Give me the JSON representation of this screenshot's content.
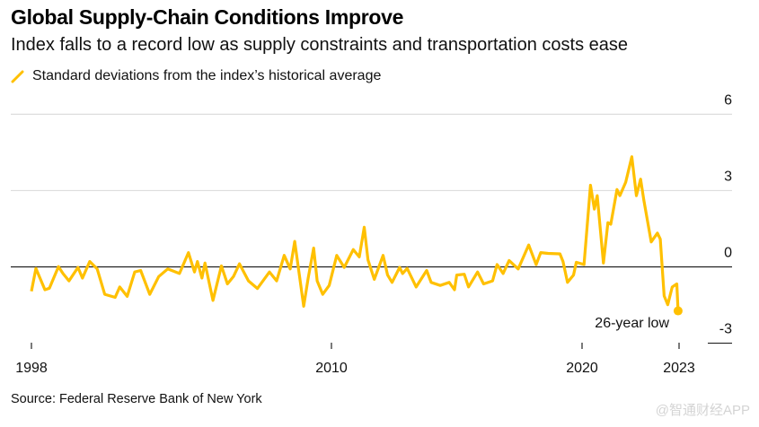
{
  "title": "Global Supply-Chain Conditions Improve",
  "subtitle": "Index falls to a record low as supply constraints and transportation costs ease",
  "legend_label": "Standard deviations from the index’s historical average",
  "source": "Source: Federal Reserve Bank of New York",
  "watermark": "@智通财经APP",
  "chart_data": {
    "type": "line",
    "title": "Global Supply-Chain Conditions Improve",
    "ylim": [
      -3,
      6
    ],
    "yticks": [
      "6",
      "3",
      "0",
      "-3"
    ],
    "ytick_values": [
      6,
      3,
      0,
      -3
    ],
    "xticks": [
      "1998",
      "2010",
      "2020",
      "2023"
    ],
    "xtick_values": [
      1998,
      2010,
      2020,
      2023
    ],
    "grid": true,
    "line_color": "#FFC000",
    "annotation": "26-year low",
    "series": [
      {
        "name": "Standard deviations from the index’s historical average",
        "points": [
          [
            1998.0,
            -0.96
          ],
          [
            1998.18,
            -0.06
          ],
          [
            1998.54,
            -0.9
          ],
          [
            1998.72,
            -0.84
          ],
          [
            1999.08,
            0.01
          ],
          [
            1999.26,
            -0.26
          ],
          [
            1999.5,
            -0.55
          ],
          [
            1999.86,
            -0.02
          ],
          [
            2000.04,
            -0.44
          ],
          [
            2000.33,
            0.21
          ],
          [
            2000.63,
            -0.08
          ],
          [
            2000.93,
            -1.08
          ],
          [
            2001.35,
            -1.2
          ],
          [
            2001.53,
            -0.79
          ],
          [
            2001.83,
            -1.16
          ],
          [
            2002.13,
            -0.2
          ],
          [
            2002.37,
            -0.14
          ],
          [
            2002.73,
            -1.08
          ],
          [
            2003.09,
            -0.38
          ],
          [
            2003.45,
            -0.08
          ],
          [
            2003.92,
            -0.26
          ],
          [
            2004.28,
            0.56
          ],
          [
            2004.52,
            -0.2
          ],
          [
            2004.64,
            0.21
          ],
          [
            2004.82,
            -0.44
          ],
          [
            2004.94,
            0.15
          ],
          [
            2005.26,
            -1.32
          ],
          [
            2005.6,
            0.04
          ],
          [
            2005.84,
            -0.67
          ],
          [
            2006.08,
            -0.38
          ],
          [
            2006.32,
            0.12
          ],
          [
            2006.68,
            -0.55
          ],
          [
            2007.04,
            -0.85
          ],
          [
            2007.52,
            -0.2
          ],
          [
            2007.81,
            -0.55
          ],
          [
            2008.11,
            0.45
          ],
          [
            2008.35,
            -0.08
          ],
          [
            2008.53,
            1.0
          ],
          [
            2008.89,
            -1.55
          ],
          [
            2009.07,
            -0.44
          ],
          [
            2009.29,
            0.74
          ],
          [
            2009.43,
            -0.55
          ],
          [
            2009.65,
            -1.08
          ],
          [
            2009.91,
            -0.73
          ],
          [
            2010.21,
            0.45
          ],
          [
            2010.51,
            -0.02
          ],
          [
            2010.87,
            0.68
          ],
          [
            2011.11,
            0.39
          ],
          [
            2011.31,
            1.56
          ],
          [
            2011.46,
            0.27
          ],
          [
            2011.71,
            -0.49
          ],
          [
            2012.06,
            0.45
          ],
          [
            2012.24,
            -0.32
          ],
          [
            2012.42,
            -0.61
          ],
          [
            2012.72,
            -0.02
          ],
          [
            2012.84,
            -0.26
          ],
          [
            2013.02,
            -0.06
          ],
          [
            2013.38,
            -0.79
          ],
          [
            2013.8,
            -0.14
          ],
          [
            2013.98,
            -0.61
          ],
          [
            2014.34,
            -0.73
          ],
          [
            2014.7,
            -0.61
          ],
          [
            2014.91,
            -0.9
          ],
          [
            2015.0,
            -0.32
          ],
          [
            2015.3,
            -0.29
          ],
          [
            2015.47,
            -0.79
          ],
          [
            2015.83,
            -0.2
          ],
          [
            2016.07,
            -0.67
          ],
          [
            2016.43,
            -0.55
          ],
          [
            2016.61,
            0.09
          ],
          [
            2016.85,
            -0.26
          ],
          [
            2017.09,
            0.25
          ],
          [
            2017.45,
            -0.08
          ],
          [
            2017.87,
            0.86
          ],
          [
            2018.17,
            0.09
          ],
          [
            2018.35,
            0.56
          ],
          [
            2018.65,
            0.53
          ],
          [
            2019.12,
            0.51
          ],
          [
            2019.24,
            0.21
          ],
          [
            2019.42,
            -0.61
          ],
          [
            2019.66,
            -0.32
          ],
          [
            2019.77,
            0.18
          ],
          [
            2020.06,
            0.09
          ],
          [
            2020.26,
            3.21
          ],
          [
            2020.38,
            2.27
          ],
          [
            2020.47,
            2.8
          ],
          [
            2020.66,
            0.15
          ],
          [
            2020.8,
            1.74
          ],
          [
            2020.89,
            1.68
          ],
          [
            2021.08,
            3.04
          ],
          [
            2021.17,
            2.8
          ],
          [
            2021.35,
            3.33
          ],
          [
            2021.54,
            4.33
          ],
          [
            2021.68,
            2.8
          ],
          [
            2021.81,
            3.45
          ],
          [
            2021.91,
            2.62
          ],
          [
            2022.14,
            0.98
          ],
          [
            2022.33,
            1.33
          ],
          [
            2022.42,
            1.09
          ],
          [
            2022.54,
            -1.14
          ],
          [
            2022.65,
            -1.49
          ],
          [
            2022.79,
            -0.79
          ],
          [
            2022.93,
            -0.67
          ],
          [
            2022.97,
            -1.73
          ]
        ]
      }
    ]
  }
}
